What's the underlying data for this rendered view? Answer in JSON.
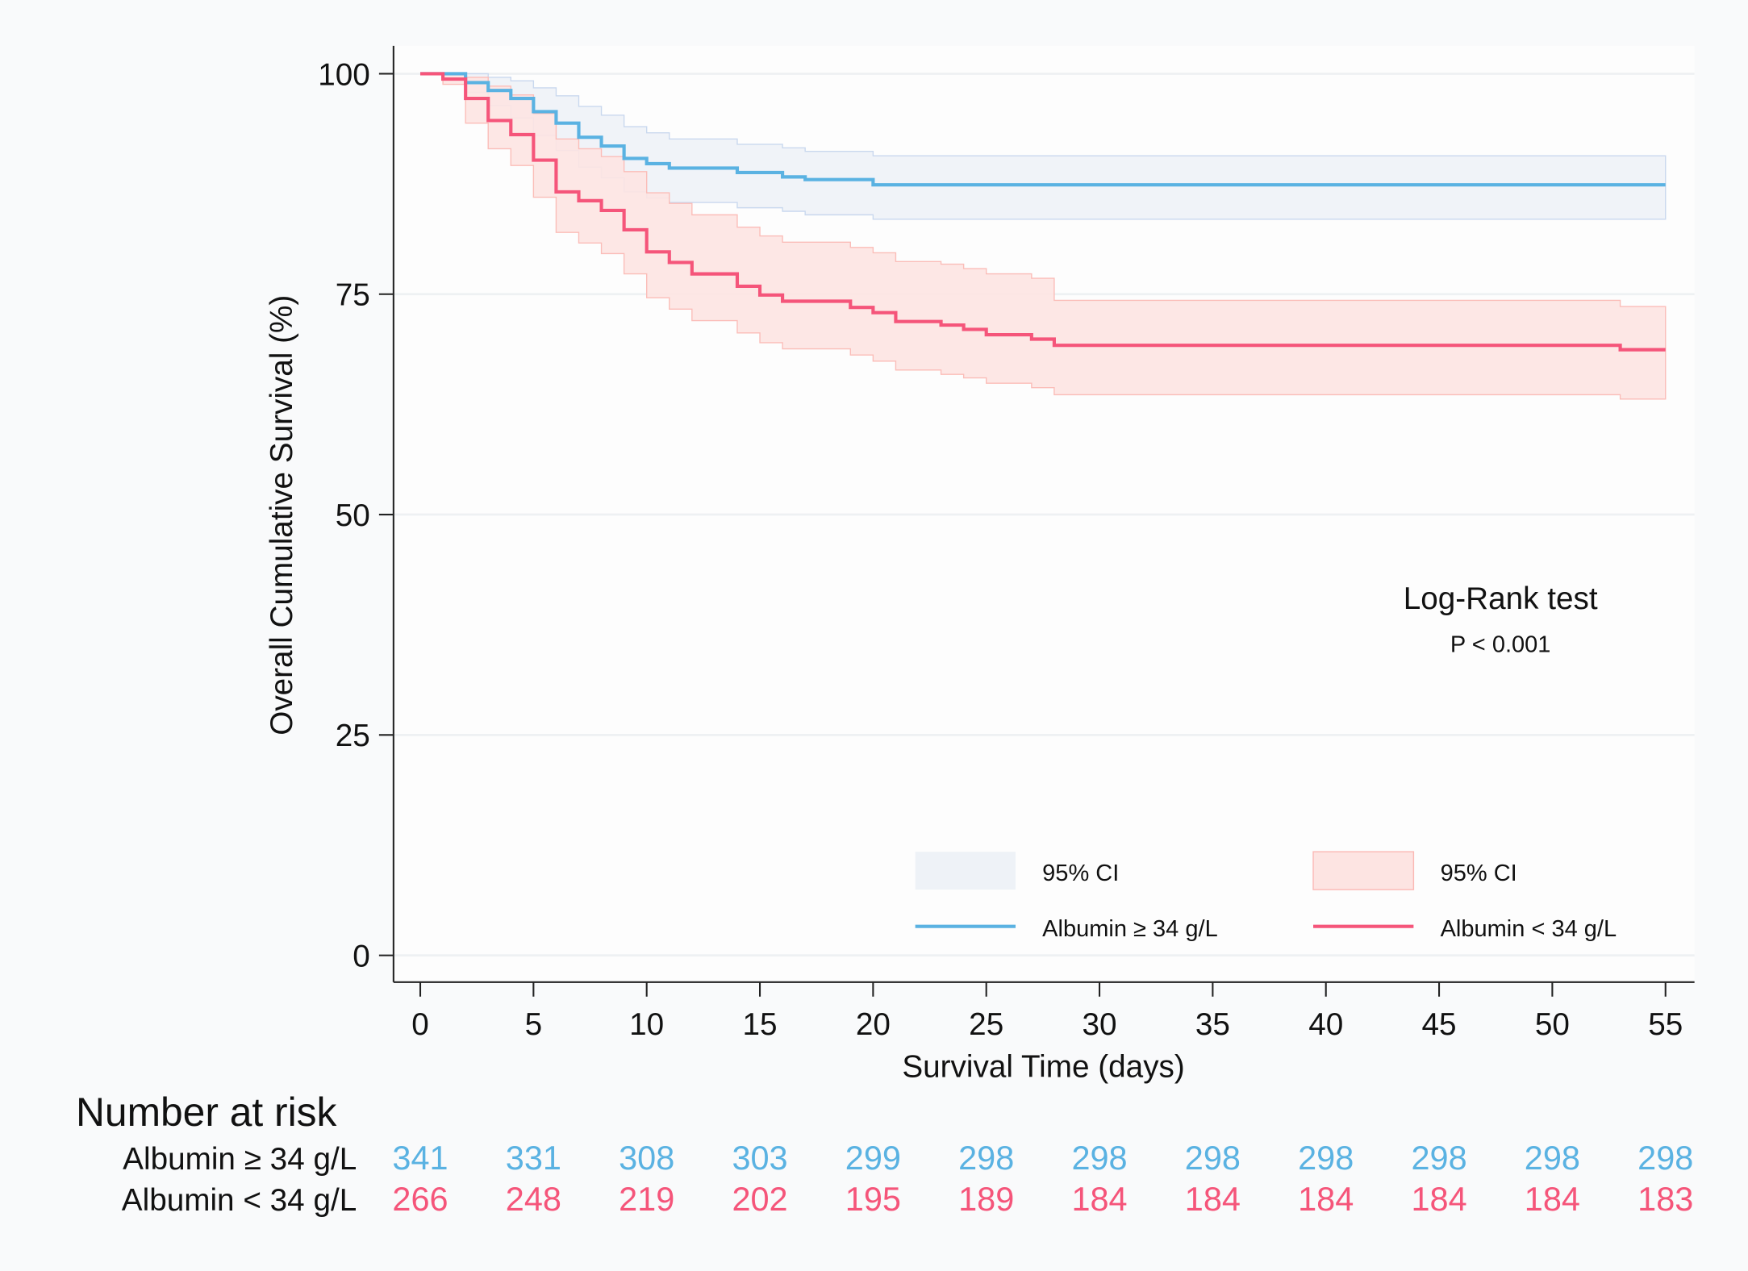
{
  "chart_data": {
    "type": "line",
    "subtype": "kaplan-meier",
    "xlabel": "Survival Time (days)",
    "ylabel": "Overall Cumulative Survival (%)",
    "xlim": [
      0,
      55
    ],
    "ylim": [
      0,
      100
    ],
    "xticks": [
      0,
      5,
      10,
      15,
      20,
      25,
      30,
      35,
      40,
      45,
      50,
      55
    ],
    "yticks": [
      0,
      25,
      50,
      75,
      100
    ],
    "grid": "horizontal",
    "legend_placement": "bottom-right",
    "annotation": {
      "title": "Log-Rank test",
      "text": "P < 0.001"
    },
    "series": [
      {
        "name": "Albumin ≥ 34 g/L",
        "color": "#5ab2e2",
        "ci_color": "#eef2f7",
        "ci_label": "95% CI",
        "time": [
          0,
          2,
          3,
          4,
          5,
          6,
          7,
          8,
          9,
          10,
          11,
          14,
          16,
          17,
          20
        ],
        "survival": [
          100,
          99.0,
          98.1,
          97.2,
          95.7,
          94.4,
          92.8,
          91.8,
          90.4,
          89.8,
          89.3,
          88.8,
          88.3,
          88.0,
          87.4
        ],
        "ci_upper": [
          100,
          100,
          99.6,
          99.2,
          98.4,
          97.5,
          96.3,
          95.3,
          94.0,
          93.3,
          92.6,
          92.0,
          91.6,
          91.2,
          90.7
        ],
        "ci_lower": [
          100,
          97.9,
          96.4,
          95.0,
          93.0,
          91.3,
          89.4,
          88.2,
          86.6,
          85.9,
          85.4,
          84.8,
          84.4,
          84.0,
          83.5
        ]
      },
      {
        "name": "Albumin < 34 g/L",
        "color": "#f5557a",
        "ci_color": "#fde4e2",
        "ci_label": "95% CI",
        "time": [
          0,
          1,
          2,
          3,
          4,
          5,
          6,
          7,
          8,
          9,
          10,
          11,
          12,
          14,
          15,
          16,
          19,
          20,
          21,
          23,
          24,
          25,
          27,
          28,
          53
        ],
        "survival": [
          100,
          99.4,
          97.2,
          94.7,
          93.1,
          90.2,
          86.6,
          85.6,
          84.5,
          82.3,
          79.8,
          78.6,
          77.3,
          75.9,
          74.9,
          74.2,
          73.5,
          72.9,
          71.9,
          71.5,
          71.0,
          70.4,
          69.9,
          69.2,
          68.7
        ],
        "ci_upper": [
          100,
          100,
          99.6,
          98.6,
          97.6,
          95.5,
          92.6,
          91.5,
          90.6,
          88.9,
          86.5,
          85.3,
          84.0,
          82.6,
          81.6,
          80.9,
          80.3,
          79.7,
          78.7,
          78.4,
          77.9,
          77.3,
          76.8,
          74.3,
          73.6
        ],
        "ci_lower": [
          100,
          98.8,
          94.4,
          91.5,
          89.6,
          86.0,
          82.0,
          80.8,
          79.6,
          77.3,
          74.6,
          73.3,
          72.0,
          70.6,
          69.5,
          68.8,
          68.1,
          67.4,
          66.4,
          65.9,
          65.5,
          64.9,
          64.4,
          63.6,
          63.1
        ]
      }
    ],
    "risk_table": {
      "title": "Number at risk",
      "rows": [
        {
          "label": "Albumin ≥ 34 g/L",
          "color": "#5ab2e2",
          "values": [
            341,
            331,
            308,
            303,
            299,
            298,
            298,
            298,
            298,
            298,
            298,
            298
          ]
        },
        {
          "label": "Albumin < 34 g/L",
          "color": "#f5557a",
          "values": [
            266,
            248,
            219,
            202,
            195,
            189,
            184,
            184,
            184,
            184,
            184,
            183
          ]
        }
      ]
    }
  }
}
